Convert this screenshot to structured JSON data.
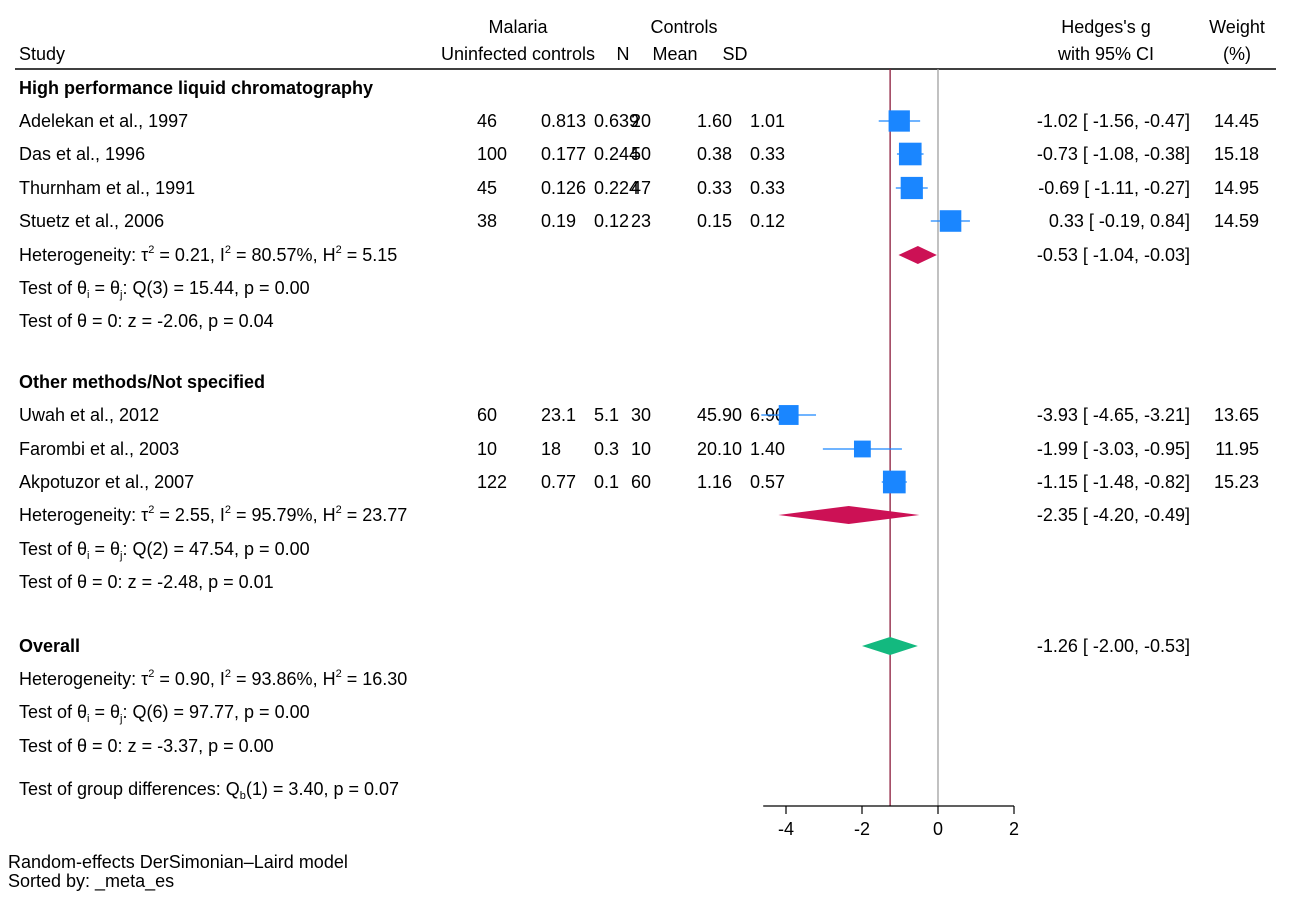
{
  "chart_data": {
    "type": "forest",
    "header": {
      "group1": "Malaria",
      "group2": "Controls",
      "study": "Study",
      "uninfected": "Uninfected controls",
      "n": "N",
      "mean": "Mean",
      "sd": "SD",
      "effect_line1": "Hedges's g",
      "effect_line2": "with 95% CI",
      "weight_line1": "Weight",
      "weight_line2": "(%)"
    },
    "groups": [
      {
        "name": "High performance liquid chromatography",
        "studies": [
          {
            "study": "Adelekan et al., 1997",
            "c1": "46",
            "c2": "0.813",
            "c3": "0.639",
            "n": "20",
            "mean": "1.60",
            "sd": "1.01",
            "g": -1.02,
            "lo": -1.56,
            "hi": -0.47,
            "ci_text": "-1.02 [ -1.56,  -0.47]",
            "weight": "14.45"
          },
          {
            "study": "Das et al., 1996",
            "c1": "100",
            "c2": "0.177",
            "c3": "0.244",
            "n": "50",
            "mean": "0.38",
            "sd": "0.33",
            "g": -0.73,
            "lo": -1.08,
            "hi": -0.38,
            "ci_text": "-0.73 [ -1.08,  -0.38]",
            "weight": "15.18"
          },
          {
            "study": "Thurnham et al., 1991",
            "c1": "45",
            "c2": "0.126",
            "c3": "0.224",
            "n": "47",
            "mean": "0.33",
            "sd": "0.33",
            "g": -0.69,
            "lo": -1.11,
            "hi": -0.27,
            "ci_text": "-0.69 [ -1.11,  -0.27]",
            "weight": "14.95"
          },
          {
            "study": "Stuetz et al., 2006",
            "c1": "38",
            "c2": "0.19",
            "c3": "0.12",
            "n": "23",
            "mean": "0.15",
            "sd": "0.12",
            "g": 0.33,
            "lo": -0.19,
            "hi": 0.84,
            "ci_text": "0.33 [ -0.19,   0.84]",
            "weight": "14.59"
          }
        ],
        "pooled": {
          "g": -0.53,
          "lo": -1.04,
          "hi": -0.03,
          "ci_text": "-0.53 [ -1.04,  -0.03]"
        },
        "heterogeneity": {
          "tau2": "0.21",
          "i2": "80.57%",
          "h2": "5.15"
        },
        "test_q": {
          "df": "3",
          "q": "15.44",
          "p": "0.00"
        },
        "test_z": {
          "z": "-2.06",
          "p": "0.04"
        }
      },
      {
        "name": "Other methods/Not specified",
        "studies": [
          {
            "study": "Uwah et al., 2012",
            "c1": "60",
            "c2": "23.1",
            "c3": "5.1",
            "n": "30",
            "mean": "45.90",
            "sd": "6.90",
            "g": -3.93,
            "lo": -4.65,
            "hi": -3.21,
            "ci_text": "-3.93 [ -4.65,  -3.21]",
            "weight": "13.65"
          },
          {
            "study": "Farombi et al., 2003",
            "c1": "10",
            "c2": "18",
            "c3": "0.3",
            "n": "10",
            "mean": "20.10",
            "sd": "1.40",
            "g": -1.99,
            "lo": -3.03,
            "hi": -0.95,
            "ci_text": "-1.99 [ -3.03,  -0.95]",
            "weight": "11.95"
          },
          {
            "study": "Akpotuzor et al., 2007",
            "c1": "122",
            "c2": "0.77",
            "c3": "0.1",
            "n": "60",
            "mean": "1.16",
            "sd": "0.57",
            "g": -1.15,
            "lo": -1.48,
            "hi": -0.82,
            "ci_text": "-1.15 [ -1.48,  -0.82]",
            "weight": "15.23"
          }
        ],
        "pooled": {
          "g": -2.35,
          "lo": -4.2,
          "hi": -0.49,
          "ci_text": "-2.35 [ -4.20,  -0.49]"
        },
        "heterogeneity": {
          "tau2": "2.55",
          "i2": "95.79%",
          "h2": "23.77"
        },
        "test_q": {
          "df": "2",
          "q": "47.54",
          "p": "0.00"
        },
        "test_z": {
          "z": "-2.48",
          "p": "0.01"
        }
      }
    ],
    "overall": {
      "label": "Overall",
      "g": -1.26,
      "lo": -2.0,
      "hi": -0.53,
      "ci_text": "-1.26 [ -2.00,  -0.53]",
      "heterogeneity": {
        "tau2": "0.90",
        "i2": "93.86%",
        "h2": "16.30"
      },
      "test_q": {
        "df": "6",
        "q": "97.77",
        "p": "0.00"
      },
      "test_z": {
        "z": "-3.37",
        "p": "0.00"
      }
    },
    "group_diff": {
      "df": "1",
      "q": "3.40",
      "p": "0.07"
    },
    "xaxis": {
      "ticks": [
        -4,
        -2,
        0,
        2
      ],
      "tick_labels": [
        "-4",
        "-2",
        "0",
        "2"
      ],
      "range": [
        -4.6,
        2
      ]
    },
    "colors": {
      "study_marker": "#1a86ff",
      "group_diamond": "#cc1155",
      "overall_diamond": "#13b97f",
      "overall_line": "#8b1a3a",
      "null_line": "#a0a0a0"
    }
  },
  "footnotes": {
    "model": "Random-effects DerSimonian–Laird model",
    "sorted": "Sorted by: _meta_es"
  }
}
